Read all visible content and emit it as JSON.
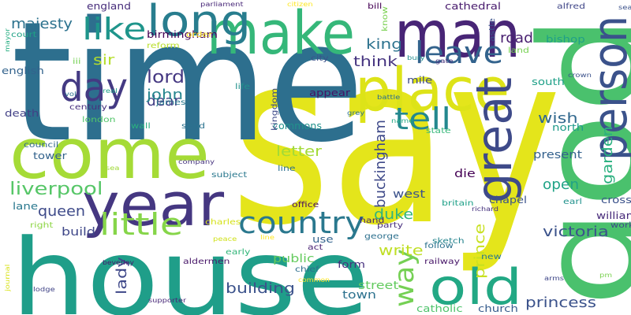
{
  "words": [
    {
      "text": "say",
      "color": "#e4e51b"
    },
    {
      "text": "time",
      "color": "#2d6f8e"
    },
    {
      "text": "house",
      "color": "#1f9e89"
    },
    {
      "text": "god",
      "color": "#4ac16d"
    },
    {
      "text": "man",
      "color": "#482576"
    },
    {
      "text": "make",
      "color": "#35b779"
    },
    {
      "text": "come",
      "color": "#a5db36"
    },
    {
      "text": "place",
      "color": "#dde318"
    },
    {
      "text": "long",
      "color": "#287d8e"
    },
    {
      "text": "year",
      "color": "#453781"
    },
    {
      "text": "great",
      "color": "#3e4a89"
    },
    {
      "text": "person",
      "color": "#3b528b"
    },
    {
      "text": "day",
      "color": "#443a83"
    },
    {
      "text": "old",
      "color": "#22a884"
    },
    {
      "text": "country",
      "color": "#2a788e"
    },
    {
      "text": "like",
      "color": "#1f958b"
    },
    {
      "text": "little",
      "color": "#86d549"
    },
    {
      "text": "leave",
      "color": "#33638d"
    },
    {
      "text": "tell",
      "color": "#23888e"
    },
    {
      "text": "way",
      "color": "#75d054"
    },
    {
      "text": "lord",
      "color": "#453882"
    },
    {
      "text": "liverpool",
      "color": "#56c667"
    },
    {
      "text": "victoria",
      "color": "#3b528b"
    },
    {
      "text": "buckingham",
      "color": "#3e4989"
    },
    {
      "text": "princess",
      "color": "#3b528b"
    },
    {
      "text": "duke",
      "color": "#31b57b"
    },
    {
      "text": "garden",
      "color": "#2ab07f"
    },
    {
      "text": "king",
      "color": "#2c728e"
    },
    {
      "text": "majesty",
      "color": "#2c728e"
    },
    {
      "text": "dear",
      "color": "#423f85"
    },
    {
      "text": "think",
      "color": "#463480"
    },
    {
      "text": "wish",
      "color": "#31688e"
    },
    {
      "text": "open",
      "color": "#20a386"
    },
    {
      "text": "queen",
      "color": "#3e4a89"
    },
    {
      "text": "lady",
      "color": "#3f4889"
    },
    {
      "text": "prince",
      "color": "#c8e020"
    },
    {
      "text": "building",
      "color": "#3b528b"
    },
    {
      "text": "sir",
      "color": "#b5de2b"
    },
    {
      "text": "john",
      "color": "#25858e"
    },
    {
      "text": "road",
      "color": "#481f70"
    },
    {
      "text": "letter",
      "color": "#a2da37"
    },
    {
      "text": "write",
      "color": "#c0df25"
    },
    {
      "text": "build",
      "color": "#3f4788"
    },
    {
      "text": "die",
      "color": "#440154"
    },
    {
      "text": "west",
      "color": "#3b528b"
    },
    {
      "text": "public",
      "color": "#65cb5e"
    },
    {
      "text": "town",
      "color": "#2c718e"
    },
    {
      "text": "street",
      "color": "#63cb5f"
    },
    {
      "text": "present",
      "color": "#34618d"
    },
    {
      "text": "birmingham",
      "color": "#440154"
    },
    {
      "text": "england",
      "color": "#472d7b"
    },
    {
      "text": "mile",
      "color": "#3e4a89"
    },
    {
      "text": "commons",
      "color": "#21918c"
    },
    {
      "text": "chapel",
      "color": "#3b528b"
    },
    {
      "text": "cross",
      "color": "#3b528b"
    },
    {
      "text": "william",
      "color": "#472a7a"
    },
    {
      "text": "form",
      "color": "#46307e"
    },
    {
      "text": "church",
      "color": "#365c8d"
    },
    {
      "text": "tower",
      "color": "#33638d"
    },
    {
      "text": "cathedral",
      "color": "#481b6d"
    },
    {
      "text": "bishop",
      "color": "#1fa088"
    },
    {
      "text": "south",
      "color": "#1fa088"
    },
    {
      "text": "north",
      "color": "#1f9a8a"
    },
    {
      "text": "lane",
      "color": "#2a788e"
    },
    {
      "text": "english",
      "color": "#33638d"
    },
    {
      "text": "death",
      "color": "#424086"
    },
    {
      "text": "catholic",
      "color": "#4ec36b"
    },
    {
      "text": "appear",
      "color": "#471164"
    },
    {
      "text": "use",
      "color": "#33638d"
    },
    {
      "text": "george",
      "color": "#2d708e"
    },
    {
      "text": "railway",
      "color": "#481769"
    },
    {
      "text": "alfred",
      "color": "#404688"
    },
    {
      "text": "castle",
      "color": "#3b528b"
    },
    {
      "text": "century",
      "color": "#472f7d"
    },
    {
      "text": "wall",
      "color": "#2ab07f"
    },
    {
      "text": "send",
      "color": "#2c728e"
    },
    {
      "text": "office",
      "color": "#470d60"
    },
    {
      "text": "chief",
      "color": "#2e6f8e"
    },
    {
      "text": "britain",
      "color": "#1fa088"
    },
    {
      "text": "party",
      "color": "#472f7d"
    },
    {
      "text": "earl",
      "color": "#21918c"
    },
    {
      "text": "reform",
      "color": "#b8de29"
    },
    {
      "text": "life",
      "color": "#21918c"
    },
    {
      "text": "james",
      "color": "#2a788e"
    },
    {
      "text": "kingdom",
      "color": "#3e4a89"
    },
    {
      "text": "bill",
      "color": "#440154"
    },
    {
      "text": "know",
      "color": "#7ad151"
    },
    {
      "text": "iii",
      "color": "#75d054"
    },
    {
      "text": "court",
      "color": "#20a386"
    },
    {
      "text": "new",
      "color": "#2a788e"
    },
    {
      "text": "follow",
      "color": "#2c728e"
    },
    {
      "text": "sketch",
      "color": "#25848e"
    },
    {
      "text": "act",
      "color": "#482173"
    },
    {
      "text": "hand",
      "color": "#482475"
    },
    {
      "text": "early",
      "color": "#33b67a"
    },
    {
      "text": "aldermen",
      "color": "#481769"
    },
    {
      "text": "council",
      "color": "#31688e"
    },
    {
      "text": "work",
      "color": "#3e4a89"
    },
    {
      "text": "line",
      "color": "#2d708e"
    },
    {
      "text": "london",
      "color": "#52c569"
    },
    {
      "text": "subject",
      "color": "#2a788e"
    },
    {
      "text": "charles",
      "color": "#d5e21a"
    },
    {
      "text": "right",
      "color": "#8ed645"
    },
    {
      "text": "state",
      "color": "#35b779"
    },
    {
      "text": "land",
      "color": "#77d153"
    },
    {
      "text": "city",
      "color": "#3b528b"
    },
    {
      "text": "order",
      "color": "#fde725"
    },
    {
      "text": "parliament",
      "color": "#482878"
    },
    {
      "text": "citizen",
      "color": "#fde725"
    },
    {
      "text": "company",
      "color": "#46337e"
    },
    {
      "text": "journal",
      "color": "#d8e219"
    },
    {
      "text": "common",
      "color": "#fde725"
    },
    {
      "text": "mayor",
      "color": "#26ad81"
    },
    {
      "text": "real",
      "color": "#1f9e89"
    },
    {
      "text": "beverley",
      "color": "#481a6c"
    },
    {
      "text": "richard",
      "color": "#46327e"
    },
    {
      "text": "crown",
      "color": "#3b528b"
    },
    {
      "text": "gate",
      "color": "#46327e"
    },
    {
      "text": "seal",
      "color": "#3b528b"
    },
    {
      "text": "lodge",
      "color": "#414487"
    },
    {
      "text": "supporter",
      "color": "#482878"
    },
    {
      "text": "line",
      "color": "#fde725"
    },
    {
      "text": "battle",
      "color": "#2d708e"
    },
    {
      "text": "name",
      "color": "#22a884"
    },
    {
      "text": "vol",
      "color": "#2c728e"
    },
    {
      "text": "peace",
      "color": "#d0e11c"
    },
    {
      "text": "sea",
      "color": "#a0da39"
    },
    {
      "text": "arms",
      "color": "#3f4788"
    },
    {
      "text": "bury",
      "color": "#228c8d"
    },
    {
      "text": "grey",
      "color": "#2d708e"
    },
    {
      "text": "pm",
      "color": "#7ad151"
    }
  ]
}
